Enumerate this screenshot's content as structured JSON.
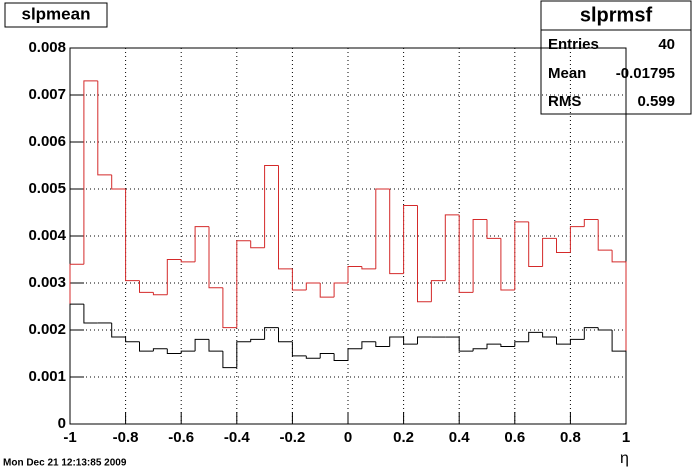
{
  "chart_data": {
    "type": "histogram",
    "title": "slpmean",
    "xlabel": "η",
    "footer": "Mon Dec 21 12:13:85 2009",
    "stats": {
      "title": "slprmsf",
      "rows": [
        {
          "label": "Entries",
          "value": 40
        },
        {
          "label": "Mean",
          "value": -0.01795
        },
        {
          "label": "RMS",
          "value": 0.599
        }
      ]
    },
    "bins": [
      -1,
      -0.95,
      -0.9,
      -0.85,
      -0.8,
      -0.75,
      -0.7,
      -0.65,
      -0.6,
      -0.55,
      -0.5,
      -0.45,
      -0.4,
      -0.35,
      -0.3,
      -0.25,
      -0.2,
      -0.15,
      -0.1,
      -0.05,
      0,
      0.05,
      0.1,
      0.15,
      0.2,
      0.25,
      0.3,
      0.35,
      0.4,
      0.45,
      0.5,
      0.55,
      0.6,
      0.65,
      0.7,
      0.75,
      0.8,
      0.85,
      0.9,
      0.95,
      1
    ],
    "series": [
      {
        "color": "#d42a2a",
        "values": [
          0.0034,
          0.0073,
          0.0053,
          0.005,
          0.00305,
          0.0028,
          0.00275,
          0.0035,
          0.00345,
          0.0042,
          0.0029,
          0.00205,
          0.0039,
          0.00375,
          0.0055,
          0.0033,
          0.00285,
          0.003,
          0.0027,
          0.003,
          0.00335,
          0.0033,
          0.005,
          0.0032,
          0.00465,
          0.0026,
          0.00305,
          0.00445,
          0.0028,
          0.00435,
          0.00395,
          0.00285,
          0.0043,
          0.00335,
          0.00395,
          0.00365,
          0.0042,
          0.00435,
          0.0037,
          0.00345
        ]
      },
      {
        "color": "#000000",
        "values": [
          0.00255,
          0.00215,
          0.00215,
          0.00185,
          0.00175,
          0.00155,
          0.0016,
          0.0015,
          0.00155,
          0.0018,
          0.00155,
          0.0012,
          0.00175,
          0.0018,
          0.00205,
          0.00175,
          0.00145,
          0.0014,
          0.0015,
          0.00135,
          0.0016,
          0.00175,
          0.00165,
          0.00185,
          0.0017,
          0.00185,
          0.00185,
          0.00185,
          0.00155,
          0.0016,
          0.0017,
          0.00165,
          0.00175,
          0.00195,
          0.00185,
          0.0017,
          0.0018,
          0.00205,
          0.002,
          0.00155
        ]
      }
    ],
    "xlim": [
      -1,
      1
    ],
    "xticks": [
      -1,
      -0.8,
      -0.6,
      -0.4,
      -0.2,
      0,
      0.2,
      0.4,
      0.6,
      0.8,
      1
    ],
    "ylim": [
      0,
      0.008
    ],
    "yticks": [
      0,
      0.001,
      0.002,
      0.003,
      0.004,
      0.005,
      0.006,
      0.007,
      0.008
    ],
    "grid": true
  }
}
